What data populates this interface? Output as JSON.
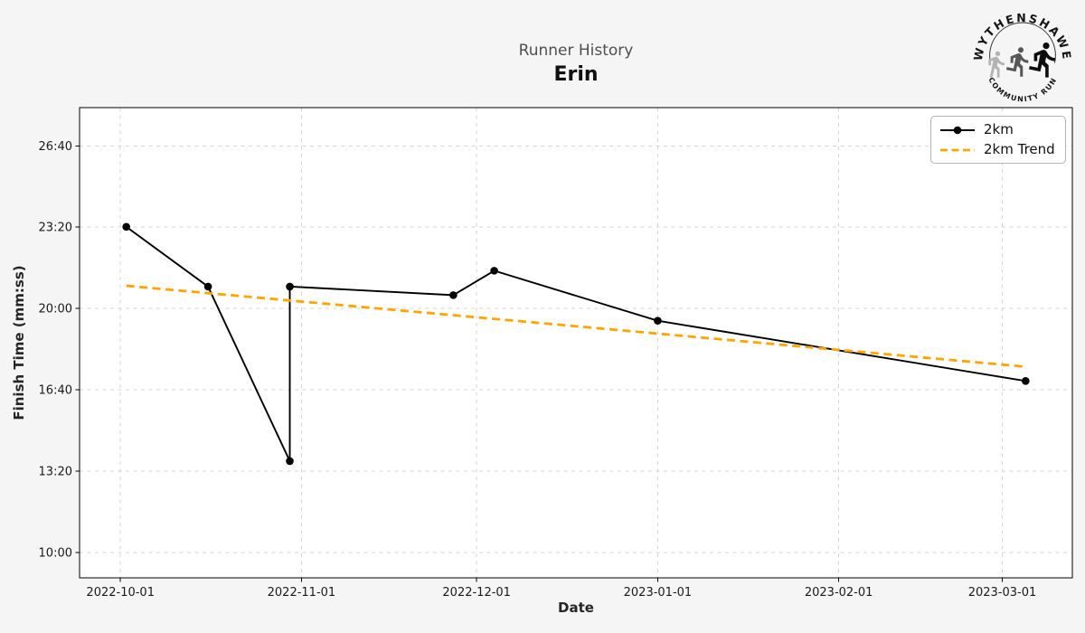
{
  "logo": {
    "top_text": "WYTHENSHAWE",
    "bottom_text": "COMMUNITY RUN"
  },
  "chart_data": {
    "type": "line",
    "title": "Runner History",
    "subtitle": "Erin",
    "xlabel": "Date",
    "ylabel": "Finish Time (mm:ss)",
    "x_ticks": [
      "2022-10-01",
      "2022-11-01",
      "2022-12-01",
      "2023-01-01",
      "2023-02-01",
      "2023-03-01"
    ],
    "y_ticks": [
      "10:00",
      "13:20",
      "16:40",
      "20:00",
      "23:20",
      "26:40"
    ],
    "xlim": [
      "2022-09-24",
      "2023-03-13"
    ],
    "ylim": [
      "08:58",
      "28:14"
    ],
    "grid": true,
    "legend_position": "upper right",
    "series": [
      {
        "name": "2km",
        "style": "solid",
        "marker": "circle",
        "color": "#000000",
        "points": [
          {
            "date": "2022-10-02",
            "time": "23:21"
          },
          {
            "date": "2022-10-16",
            "time": "20:54"
          },
          {
            "date": "2022-10-30",
            "time": "13:45"
          },
          {
            "date": "2022-10-30",
            "time": "20:54"
          },
          {
            "date": "2022-11-27",
            "time": "20:33"
          },
          {
            "date": "2022-12-04",
            "time": "21:33"
          },
          {
            "date": "2023-01-01",
            "time": "19:30"
          },
          {
            "date": "2023-03-05",
            "time": "17:02"
          }
        ]
      },
      {
        "name": "2km Trend",
        "style": "dashed",
        "marker": "none",
        "color": "#ffa500",
        "points": [
          {
            "date": "2022-10-02",
            "time": "20:56"
          },
          {
            "date": "2023-03-05",
            "time": "17:37"
          }
        ]
      }
    ],
    "colors": {
      "figure_bg": "#f5f5f5",
      "plot_bg": "#ffffff",
      "grid": "#d4d4d4",
      "spine": "#000000",
      "trend": "#ffa500"
    }
  }
}
